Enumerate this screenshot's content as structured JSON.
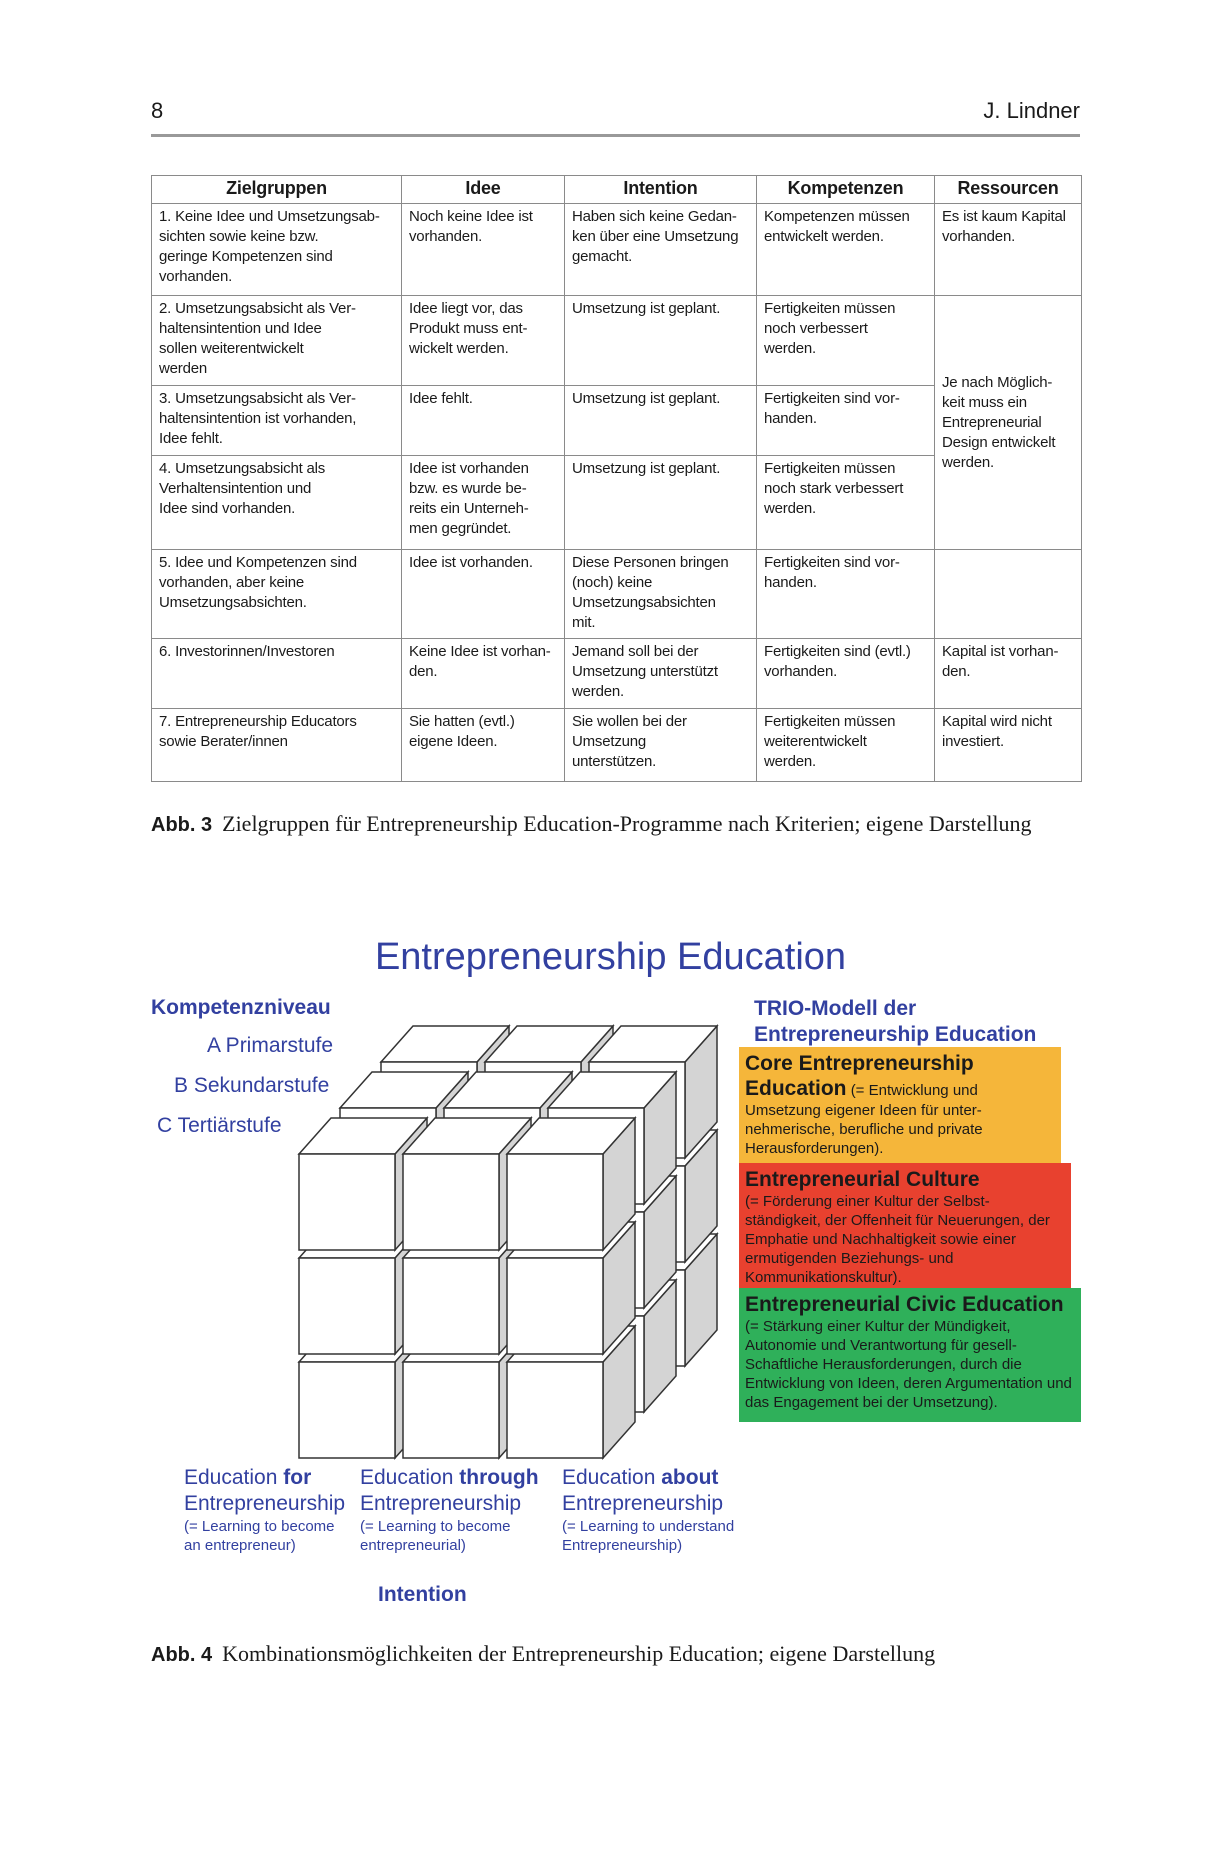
{
  "header": {
    "page_number": "8",
    "author": "J. Lindner"
  },
  "table": {
    "columns": [
      "Zielgruppen",
      "Idee",
      "Intention",
      "Kompetenzen",
      "Ressourcen"
    ],
    "rows": [
      {
        "group": "1.  Keine Idee und Umsetzungsab-\n     sichten sowie keine bzw.\n     geringe  Kompetenzen sind\n     vorhanden.",
        "idee": "Noch keine Idee ist\nvorhanden.",
        "intention": "Haben sich keine Gedan-\nken über eine Umsetzung\ngemacht.",
        "kompetenzen": "Kompetenzen müssen\nentwickelt werden.",
        "ressourcen": "Es ist kaum Kapital\nvorhanden."
      },
      {
        "group": "2.  Umsetzungsabsicht als Ver-\n     haltensintention und Idee\n     sollen weiterentwickelt\n     werden",
        "idee": "Idee liegt vor, das\nProdukt muss ent-\nwickelt werden.",
        "intention": "Umsetzung ist geplant.",
        "kompetenzen": "Fertigkeiten müssen\nnoch verbessert\nwerden.",
        "ressourcen": "Je nach Möglich-\nkeit muss ein\nEntrepreneurial\nDesign entwickelt\nwerden."
      },
      {
        "group": "3.  Umsetzungsabsicht als Ver-\n     haltensintention ist vorhanden,\n     Idee fehlt.",
        "idee": "Idee fehlt.",
        "intention": "Umsetzung ist geplant.",
        "kompetenzen": "Fertigkeiten sind vor-\nhanden."
      },
      {
        "group": "4.  Umsetzungsabsicht als\n     Verhaltensintention und\n     Idee sind vorhanden.",
        "idee": "Idee ist vorhanden\nbzw. es wurde be-\nreits ein Unterneh-\nmen gegründet.",
        "intention": "Umsetzung ist geplant.",
        "kompetenzen": "Fertigkeiten müssen\nnoch stark verbessert\nwerden."
      },
      {
        "group": "5.  Idee und Kompetenzen sind\n     vorhanden, aber keine\n     Umsetzungsabsichten.",
        "idee": "Idee ist vorhanden.",
        "intention": "Diese Personen bringen\n(noch) keine\nUmsetzungsabsichten\nmit.",
        "kompetenzen": "Fertigkeiten sind vor-\nhanden.",
        "ressourcen": ""
      },
      {
        "group": "6.  Investorinnen/Investoren",
        "idee": "Keine Idee ist vorhan-\nden.",
        "intention": "Jemand soll bei der\nUmsetzung unterstützt\nwerden.",
        "kompetenzen": "Fertigkeiten sind (evtl.)\nvorhanden.",
        "ressourcen": "Kapital ist vorhan-\nden."
      },
      {
        "group": "7.  Entrepreneurship Educators\n     sowie Berater/innen",
        "idee": "Sie hatten (evtl.)\neigene Ideen.",
        "intention": "Sie wollen bei der\nUmsetzung\nunterstützen.",
        "kompetenzen": "Fertigkeiten müssen\nweiterentwickelt\nwerden.",
        "ressourcen": "Kapital wird nicht\ninvestiert."
      }
    ]
  },
  "figure3_caption": {
    "label": "Abb. 3",
    "text": "Zielgruppen für Entrepreneurship Education-Programme nach Kriterien; eigene Darstellung"
  },
  "diagram": {
    "title": "Entrepreneurship Education",
    "competence_heading": "Kompetenzniveau",
    "levels": [
      "A Primarstufe",
      "B Sekundarstufe",
      "C Tertiärstufe"
    ],
    "trio_heading_1": "TRIO-Modell der",
    "trio_heading_2": "Entrepreneurship Education",
    "boxes": [
      {
        "title": "Core Entrepreneurship Education",
        "text": "(= Entwicklung und Umsetzung eigener Ideen für unter-nehmerische, berufliche und private Herausforderungen).",
        "color": "#f5b63a"
      },
      {
        "title": "Entrepreneurial Culture",
        "text": "(= Förderung einer Kultur der Selbst-ständigkeit, der Offenheit für Neuerungen, der Emphatie und Nachhaltigkeit sowie einer ermutigenden Beziehungs- und Kommunikationskultur).",
        "color": "#e8412f"
      },
      {
        "title": "Entrepreneurial Civic Education",
        "text": "(= Stärkung einer Kultur der Mündigkeit, Autonomie und Verantwortung für gesell-Schaftliche Herausforderungen, durch die Entwicklung von Ideen, deren Argumentation und das Engagement bei der Umsetzung).",
        "color": "#2fb05a"
      }
    ],
    "education_types": [
      {
        "prefix": "Education ",
        "bold": "for",
        "line2": "Entrepreneurship",
        "sub1": "(= Learning to become",
        "sub2": "an entrepreneur)"
      },
      {
        "prefix": "Education ",
        "bold": "through",
        "line2": "Entrepreneurship",
        "sub1": "(= Learning to become",
        "sub2": "entrepreneurial)"
      },
      {
        "prefix": "Education ",
        "bold": "about",
        "line2": "Entrepreneurship",
        "sub1": "(= Learning to understand",
        "sub2": "Entrepreneurship)"
      }
    ],
    "axis_label": "Intention",
    "text_color": "#3240a0"
  },
  "figure4_caption": {
    "label": "Abb. 4",
    "text": "Kombinationsmöglichkeiten der Entrepreneurship Education; eigene Darstellung"
  }
}
